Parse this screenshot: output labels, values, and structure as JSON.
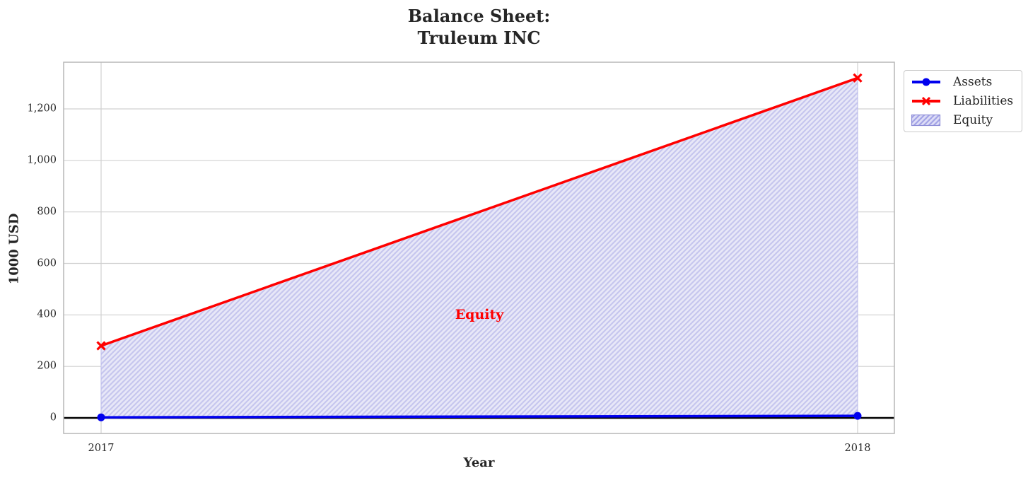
{
  "figure": {
    "title_line1": "Balance Sheet:",
    "title_line2": "Truleum INC",
    "xlabel": "Year",
    "ylabel": "1000 USD"
  },
  "legend": {
    "entries": [
      {
        "label": "Assets",
        "swatch": "line-circle-marker",
        "color": "#0000ee"
      },
      {
        "label": "Liabilities",
        "swatch": "line-x-marker",
        "color": "#ff0000"
      },
      {
        "label": "Equity",
        "swatch": "hatched-patch",
        "color": "#a3a3e6"
      }
    ]
  },
  "annotation": {
    "text": "Equity"
  },
  "chart_data": {
    "type": "line",
    "title": "Balance Sheet:\nTruleum INC",
    "xlabel": "Year",
    "ylabel": "1000 USD",
    "x": [
      2017,
      2018
    ],
    "xtick_labels": [
      "2017",
      "2018"
    ],
    "yticks": [
      0,
      200,
      400,
      600,
      800,
      1000,
      1200
    ],
    "ytick_labels": [
      "0",
      "200",
      "400",
      "600",
      "800",
      "1,000",
      "1,200"
    ],
    "xlim": [
      2016.95,
      2018.05
    ],
    "ylim": [
      -60,
      1382
    ],
    "grid": true,
    "legend_position": "upper right, outside axes",
    "series": [
      {
        "name": "Assets",
        "color": "#0000ee",
        "marker": "circle",
        "line_width": 3.5,
        "values": [
          2,
          8
        ]
      },
      {
        "name": "Liabilities",
        "color": "#ff0000",
        "marker": "x",
        "line_width": 3.5,
        "values": [
          280,
          1320
        ]
      }
    ],
    "area_fill": {
      "name": "Equity",
      "between": [
        "Assets",
        "Liabilities"
      ],
      "facecolor": "#e8e8f8",
      "hatch_color": "#c6c6ee",
      "edge_color": "#bcbcec",
      "hatch": "//"
    },
    "zero_line_color": "#000000",
    "grid_color": "#d0d0d0",
    "axes_border_color": "#b7b7b7",
    "annotation": {
      "text": "Equity",
      "x": 2017.5,
      "y": 400,
      "color": "#ff0000",
      "bold": true
    }
  }
}
